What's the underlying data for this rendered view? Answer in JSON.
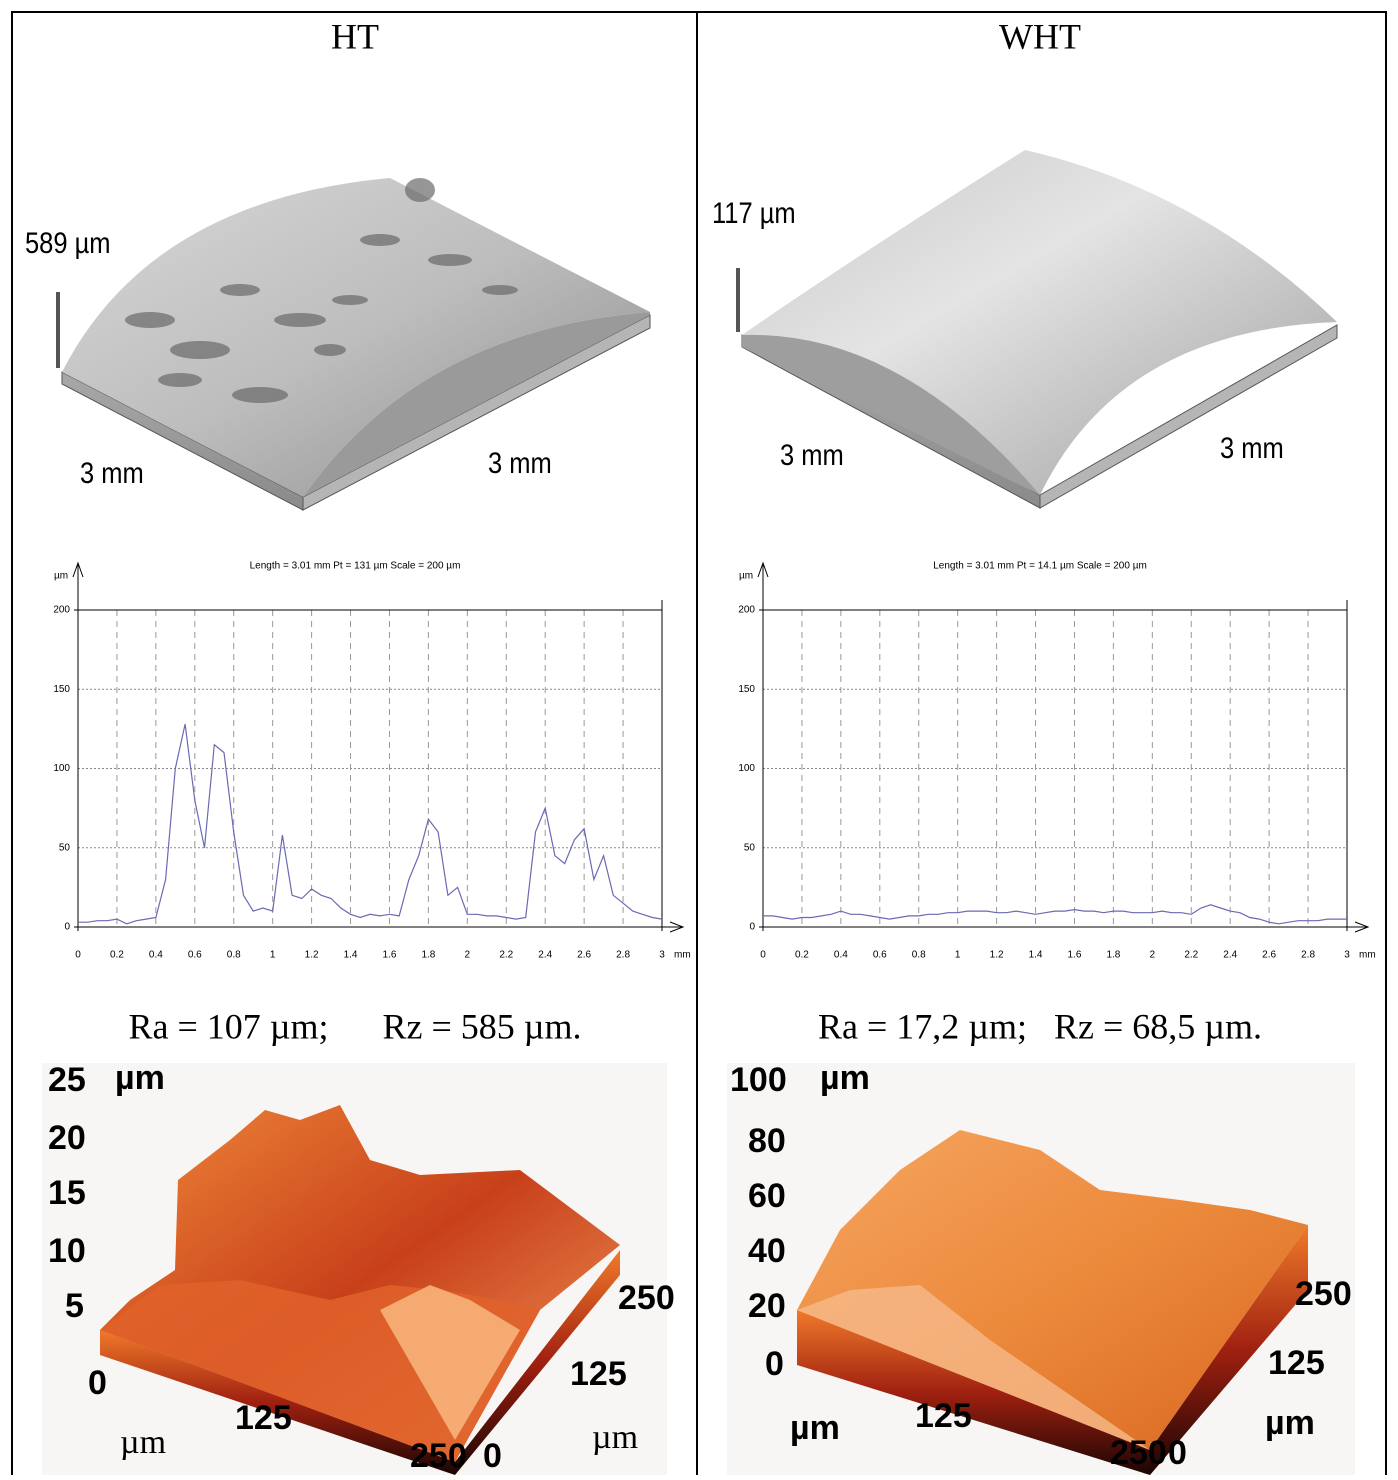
{
  "panels": [
    {
      "header": "HT",
      "surface": {
        "height": "589 µm",
        "length_a": "3 mm",
        "length_b": "3 mm"
      },
      "roughness": "Ra = 107 µm;      Rz = 585 µm.",
      "afm": {
        "z_label": "µm",
        "x_label": "µm",
        "y_label": "µm",
        "z_ticks": [
          25,
          20,
          15,
          10,
          5,
          0
        ],
        "x_ticks": [
          125,
          250
        ],
        "y_ticks": [
          250,
          125,
          0
        ]
      }
    },
    {
      "header": "WHT",
      "surface": {
        "height": "117 µm",
        "length_a": "3 mm",
        "length_b": "3 mm"
      },
      "roughness": "Ra = 17,2 µm;   Rz = 68,5 µm.",
      "afm": {
        "z_label": "µm",
        "x_label": "µm",
        "y_label": "µm",
        "z_ticks": [
          100,
          80,
          60,
          40,
          20,
          0
        ],
        "x_ticks": [
          125,
          250
        ],
        "y_ticks": [
          250,
          125,
          0
        ]
      }
    }
  ],
  "chart_data": [
    {
      "type": "line",
      "title": "Length = 3.01 mm  Pt = 131 µm  Scale = 200 µm",
      "y_label": "µm",
      "x_label": "mm",
      "color": "#6a6ab4",
      "x": [
        0,
        0.05,
        0.1,
        0.15,
        0.2,
        0.25,
        0.3,
        0.35,
        0.4,
        0.45,
        0.5,
        0.55,
        0.6,
        0.65,
        0.7,
        0.75,
        0.8,
        0.85,
        0.9,
        0.95,
        1,
        1.05,
        1.1,
        1.15,
        1.2,
        1.25,
        1.3,
        1.35,
        1.4,
        1.45,
        1.5,
        1.55,
        1.6,
        1.65,
        1.7,
        1.75,
        1.8,
        1.85,
        1.9,
        1.95,
        2,
        2.05,
        2.1,
        2.15,
        2.2,
        2.25,
        2.3,
        2.35,
        2.4,
        2.45,
        2.5,
        2.55,
        2.6,
        2.65,
        2.7,
        2.75,
        2.8,
        2.85,
        2.9,
        2.95,
        3
      ],
      "values": [
        3,
        3,
        4,
        4,
        5,
        2,
        4,
        5,
        6,
        30,
        100,
        128,
        80,
        50,
        115,
        110,
        60,
        20,
        10,
        12,
        10,
        58,
        20,
        18,
        24,
        20,
        18,
        12,
        8,
        6,
        8,
        7,
        8,
        7,
        30,
        45,
        68,
        60,
        20,
        25,
        8,
        8,
        7,
        7,
        6,
        5,
        6,
        60,
        75,
        45,
        40,
        55,
        62,
        30,
        45,
        20,
        15,
        10,
        8,
        6,
        5
      ],
      "xlim": [
        0,
        3
      ],
      "ylim": [
        0,
        200
      ],
      "xticks": [
        0,
        0.2,
        0.4,
        0.6,
        0.8,
        1,
        1.2,
        1.4,
        1.6,
        1.8,
        2,
        2.2,
        2.4,
        2.6,
        2.8,
        3
      ],
      "yticks": [
        0,
        50,
        100,
        150,
        200
      ],
      "grid": true
    },
    {
      "type": "line",
      "title": "Length = 3.01 mm  Pt = 14.1 µm  Scale = 200 µm",
      "y_label": "µm",
      "x_label": "mm",
      "color": "#6a6ab4",
      "x": [
        0,
        0.05,
        0.1,
        0.15,
        0.2,
        0.25,
        0.3,
        0.35,
        0.4,
        0.45,
        0.5,
        0.55,
        0.6,
        0.65,
        0.7,
        0.75,
        0.8,
        0.85,
        0.9,
        0.95,
        1,
        1.05,
        1.1,
        1.15,
        1.2,
        1.25,
        1.3,
        1.35,
        1.4,
        1.45,
        1.5,
        1.55,
        1.6,
        1.65,
        1.7,
        1.75,
        1.8,
        1.85,
        1.9,
        1.95,
        2,
        2.05,
        2.1,
        2.15,
        2.2,
        2.25,
        2.3,
        2.35,
        2.4,
        2.45,
        2.5,
        2.55,
        2.6,
        2.65,
        2.7,
        2.75,
        2.8,
        2.85,
        2.9,
        2.95,
        3
      ],
      "values": [
        7,
        7,
        6,
        5,
        6,
        6,
        7,
        8,
        10,
        8,
        8,
        7,
        6,
        5,
        6,
        7,
        7,
        8,
        8,
        9,
        9,
        10,
        10,
        10,
        9,
        9,
        10,
        9,
        8,
        9,
        10,
        10,
        11,
        10,
        10,
        9,
        10,
        10,
        9,
        9,
        9,
        10,
        9,
        9,
        8,
        12,
        14,
        12,
        10,
        9,
        6,
        5,
        3,
        2,
        3,
        4,
        4,
        4,
        5,
        5,
        5
      ],
      "xlim": [
        0,
        3
      ],
      "ylim": [
        0,
        200
      ],
      "xticks": [
        0,
        0.2,
        0.4,
        0.6,
        0.8,
        1,
        1.2,
        1.4,
        1.6,
        1.8,
        2,
        2.2,
        2.4,
        2.6,
        2.8,
        3
      ],
      "yticks": [
        0,
        50,
        100,
        150,
        200
      ],
      "grid": true
    }
  ]
}
